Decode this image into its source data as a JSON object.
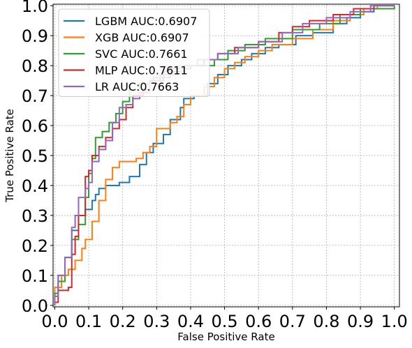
{
  "chart_data": {
    "type": "line",
    "title": "",
    "xlabel": "False Positive Rate",
    "ylabel": "True Positive Rate",
    "xlim": [
      -0.005,
      1.015
    ],
    "ylim": [
      -0.005,
      1.005
    ],
    "xticks": [
      0.0,
      0.1,
      0.2,
      0.3,
      0.4,
      0.5,
      0.6,
      0.7,
      0.8,
      0.9,
      1.0
    ],
    "yticks": [
      0.0,
      0.1,
      0.2,
      0.3,
      0.4,
      0.5,
      0.6,
      0.7,
      0.8,
      0.9,
      1.0
    ],
    "tick_labels_x": [
      "0.0",
      "0.1",
      "0.2",
      "0.3",
      "0.4",
      "0.5",
      "0.6",
      "0.7",
      "0.8",
      "0.9",
      "1.0"
    ],
    "tick_labels_y": [
      "0.0",
      "0.1",
      "0.2",
      "0.3",
      "0.4",
      "0.5",
      "0.6",
      "0.7",
      "0.8",
      "0.9",
      "1.0"
    ],
    "grid": true,
    "legend_position": "top-left",
    "series": [
      {
        "name": "LGBM AUC:0.6907",
        "color": "#1f77b4",
        "points": [
          [
            0,
            0
          ],
          [
            0,
            0.03
          ],
          [
            0.01,
            0.03
          ],
          [
            0.01,
            0.1
          ],
          [
            0.03,
            0.1
          ],
          [
            0.03,
            0.16
          ],
          [
            0.05,
            0.16
          ],
          [
            0.05,
            0.25
          ],
          [
            0.07,
            0.25
          ],
          [
            0.07,
            0.3
          ],
          [
            0.09,
            0.3
          ],
          [
            0.09,
            0.32
          ],
          [
            0.11,
            0.32
          ],
          [
            0.11,
            0.35
          ],
          [
            0.12,
            0.35
          ],
          [
            0.12,
            0.37
          ],
          [
            0.13,
            0.37
          ],
          [
            0.13,
            0.39
          ],
          [
            0.15,
            0.39
          ],
          [
            0.15,
            0.4
          ],
          [
            0.19,
            0.4
          ],
          [
            0.19,
            0.41
          ],
          [
            0.22,
            0.41
          ],
          [
            0.22,
            0.43
          ],
          [
            0.25,
            0.43
          ],
          [
            0.25,
            0.47
          ],
          [
            0.27,
            0.47
          ],
          [
            0.27,
            0.51
          ],
          [
            0.29,
            0.51
          ],
          [
            0.29,
            0.54
          ],
          [
            0.32,
            0.54
          ],
          [
            0.32,
            0.57
          ],
          [
            0.34,
            0.57
          ],
          [
            0.34,
            0.62
          ],
          [
            0.37,
            0.62
          ],
          [
            0.37,
            0.66
          ],
          [
            0.38,
            0.66
          ],
          [
            0.38,
            0.69
          ],
          [
            0.41,
            0.69
          ],
          [
            0.41,
            0.7
          ],
          [
            0.45,
            0.7
          ],
          [
            0.45,
            0.74
          ],
          [
            0.48,
            0.74
          ],
          [
            0.48,
            0.77
          ],
          [
            0.51,
            0.77
          ],
          [
            0.51,
            0.8
          ],
          [
            0.55,
            0.8
          ],
          [
            0.55,
            0.82
          ],
          [
            0.58,
            0.82
          ],
          [
            0.58,
            0.84
          ],
          [
            0.62,
            0.84
          ],
          [
            0.62,
            0.86
          ],
          [
            0.66,
            0.86
          ],
          [
            0.66,
            0.87
          ],
          [
            0.71,
            0.87
          ],
          [
            0.71,
            0.9
          ],
          [
            0.76,
            0.9
          ],
          [
            0.76,
            0.91
          ],
          [
            0.82,
            0.91
          ],
          [
            0.82,
            0.94
          ],
          [
            0.86,
            0.94
          ],
          [
            0.86,
            0.96
          ],
          [
            0.9,
            0.96
          ],
          [
            0.9,
            0.98
          ],
          [
            0.94,
            0.98
          ],
          [
            0.94,
            1.0
          ],
          [
            1.0,
            1.0
          ]
        ]
      },
      {
        "name": "XGB AUC:0.6907",
        "color": "#ff7f0e",
        "points": [
          [
            0,
            0
          ],
          [
            0,
            0.06
          ],
          [
            0.02,
            0.06
          ],
          [
            0.02,
            0.1
          ],
          [
            0.04,
            0.1
          ],
          [
            0.04,
            0.12
          ],
          [
            0.06,
            0.12
          ],
          [
            0.06,
            0.15
          ],
          [
            0.08,
            0.15
          ],
          [
            0.08,
            0.19
          ],
          [
            0.09,
            0.19
          ],
          [
            0.09,
            0.22
          ],
          [
            0.11,
            0.22
          ],
          [
            0.11,
            0.28
          ],
          [
            0.13,
            0.28
          ],
          [
            0.13,
            0.35
          ],
          [
            0.15,
            0.35
          ],
          [
            0.15,
            0.42
          ],
          [
            0.17,
            0.42
          ],
          [
            0.17,
            0.46
          ],
          [
            0.19,
            0.46
          ],
          [
            0.19,
            0.48
          ],
          [
            0.24,
            0.48
          ],
          [
            0.24,
            0.49
          ],
          [
            0.26,
            0.49
          ],
          [
            0.26,
            0.51
          ],
          [
            0.28,
            0.51
          ],
          [
            0.28,
            0.53
          ],
          [
            0.3,
            0.53
          ],
          [
            0.3,
            0.59
          ],
          [
            0.34,
            0.59
          ],
          [
            0.34,
            0.61
          ],
          [
            0.36,
            0.61
          ],
          [
            0.36,
            0.63
          ],
          [
            0.38,
            0.63
          ],
          [
            0.38,
            0.67
          ],
          [
            0.4,
            0.67
          ],
          [
            0.4,
            0.7
          ],
          [
            0.44,
            0.7
          ],
          [
            0.44,
            0.73
          ],
          [
            0.47,
            0.73
          ],
          [
            0.47,
            0.76
          ],
          [
            0.5,
            0.76
          ],
          [
            0.5,
            0.79
          ],
          [
            0.53,
            0.79
          ],
          [
            0.53,
            0.81
          ],
          [
            0.56,
            0.81
          ],
          [
            0.56,
            0.83
          ],
          [
            0.6,
            0.83
          ],
          [
            0.6,
            0.85
          ],
          [
            0.64,
            0.85
          ],
          [
            0.64,
            0.87
          ],
          [
            0.7,
            0.87
          ],
          [
            0.7,
            0.89
          ],
          [
            0.76,
            0.89
          ],
          [
            0.76,
            0.92
          ],
          [
            0.82,
            0.92
          ],
          [
            0.82,
            0.95
          ],
          [
            0.87,
            0.95
          ],
          [
            0.87,
            0.97
          ],
          [
            0.91,
            0.97
          ],
          [
            0.91,
            0.99
          ],
          [
            0.95,
            0.99
          ],
          [
            0.95,
            1.0
          ],
          [
            1.0,
            1.0
          ]
        ]
      },
      {
        "name": "SVC AUC:0.7661",
        "color": "#2ca02c",
        "points": [
          [
            0,
            0
          ],
          [
            0,
            0.04
          ],
          [
            0.01,
            0.04
          ],
          [
            0.01,
            0.08
          ],
          [
            0.03,
            0.08
          ],
          [
            0.03,
            0.16
          ],
          [
            0.05,
            0.16
          ],
          [
            0.05,
            0.22
          ],
          [
            0.07,
            0.22
          ],
          [
            0.07,
            0.27
          ],
          [
            0.09,
            0.27
          ],
          [
            0.09,
            0.36
          ],
          [
            0.1,
            0.36
          ],
          [
            0.1,
            0.44
          ],
          [
            0.11,
            0.44
          ],
          [
            0.11,
            0.49
          ],
          [
            0.12,
            0.49
          ],
          [
            0.12,
            0.56
          ],
          [
            0.14,
            0.56
          ],
          [
            0.14,
            0.58
          ],
          [
            0.16,
            0.58
          ],
          [
            0.16,
            0.61
          ],
          [
            0.18,
            0.61
          ],
          [
            0.18,
            0.64
          ],
          [
            0.2,
            0.64
          ],
          [
            0.2,
            0.68
          ],
          [
            0.22,
            0.68
          ],
          [
            0.22,
            0.72
          ],
          [
            0.25,
            0.72
          ],
          [
            0.25,
            0.74
          ],
          [
            0.29,
            0.74
          ],
          [
            0.29,
            0.76
          ],
          [
            0.34,
            0.76
          ],
          [
            0.34,
            0.79
          ],
          [
            0.4,
            0.79
          ],
          [
            0.4,
            0.8
          ],
          [
            0.47,
            0.8
          ],
          [
            0.47,
            0.82
          ],
          [
            0.51,
            0.82
          ],
          [
            0.51,
            0.85
          ],
          [
            0.56,
            0.85
          ],
          [
            0.56,
            0.87
          ],
          [
            0.62,
            0.87
          ],
          [
            0.62,
            0.89
          ],
          [
            0.7,
            0.89
          ],
          [
            0.7,
            0.92
          ],
          [
            0.78,
            0.92
          ],
          [
            0.78,
            0.94
          ],
          [
            0.84,
            0.94
          ],
          [
            0.84,
            0.97
          ],
          [
            0.9,
            0.97
          ],
          [
            0.9,
            0.99
          ],
          [
            1.0,
            0.99
          ],
          [
            1.0,
            1.0
          ]
        ]
      },
      {
        "name": "MLP AUC:0.7611",
        "color": "#d62728",
        "points": [
          [
            0,
            0
          ],
          [
            0,
            0.01
          ],
          [
            0.01,
            0.01
          ],
          [
            0.01,
            0.05
          ],
          [
            0.04,
            0.05
          ],
          [
            0.04,
            0.06
          ],
          [
            0.05,
            0.06
          ],
          [
            0.05,
            0.17
          ],
          [
            0.06,
            0.17
          ],
          [
            0.06,
            0.23
          ],
          [
            0.07,
            0.23
          ],
          [
            0.07,
            0.3
          ],
          [
            0.09,
            0.3
          ],
          [
            0.09,
            0.43
          ],
          [
            0.1,
            0.43
          ],
          [
            0.1,
            0.45
          ],
          [
            0.11,
            0.45
          ],
          [
            0.11,
            0.5
          ],
          [
            0.13,
            0.5
          ],
          [
            0.13,
            0.53
          ],
          [
            0.15,
            0.53
          ],
          [
            0.15,
            0.56
          ],
          [
            0.17,
            0.56
          ],
          [
            0.17,
            0.59
          ],
          [
            0.19,
            0.59
          ],
          [
            0.19,
            0.62
          ],
          [
            0.21,
            0.62
          ],
          [
            0.21,
            0.66
          ],
          [
            0.23,
            0.66
          ],
          [
            0.23,
            0.7
          ],
          [
            0.26,
            0.7
          ],
          [
            0.26,
            0.72
          ],
          [
            0.28,
            0.72
          ],
          [
            0.28,
            0.75
          ],
          [
            0.32,
            0.75
          ],
          [
            0.32,
            0.78
          ],
          [
            0.38,
            0.78
          ],
          [
            0.38,
            0.8
          ],
          [
            0.44,
            0.8
          ],
          [
            0.44,
            0.82
          ],
          [
            0.48,
            0.82
          ],
          [
            0.48,
            0.84
          ],
          [
            0.53,
            0.84
          ],
          [
            0.53,
            0.86
          ],
          [
            0.6,
            0.86
          ],
          [
            0.6,
            0.88
          ],
          [
            0.66,
            0.88
          ],
          [
            0.66,
            0.91
          ],
          [
            0.7,
            0.91
          ],
          [
            0.7,
            0.93
          ],
          [
            0.75,
            0.93
          ],
          [
            0.75,
            0.95
          ],
          [
            0.82,
            0.95
          ],
          [
            0.82,
            0.97
          ],
          [
            0.88,
            0.97
          ],
          [
            0.88,
            0.99
          ],
          [
            0.94,
            0.99
          ],
          [
            0.94,
            1.0
          ],
          [
            1.0,
            1.0
          ]
        ]
      },
      {
        "name": "LR AUC:0.7663",
        "color": "#9467bd",
        "points": [
          [
            0,
            0
          ],
          [
            0,
            0.03
          ],
          [
            0.01,
            0.03
          ],
          [
            0.01,
            0.1
          ],
          [
            0.03,
            0.1
          ],
          [
            0.03,
            0.16
          ],
          [
            0.05,
            0.16
          ],
          [
            0.05,
            0.26
          ],
          [
            0.06,
            0.26
          ],
          [
            0.06,
            0.3
          ],
          [
            0.07,
            0.3
          ],
          [
            0.07,
            0.36
          ],
          [
            0.09,
            0.36
          ],
          [
            0.09,
            0.39
          ],
          [
            0.1,
            0.39
          ],
          [
            0.1,
            0.41
          ],
          [
            0.11,
            0.41
          ],
          [
            0.11,
            0.48
          ],
          [
            0.13,
            0.48
          ],
          [
            0.13,
            0.52
          ],
          [
            0.15,
            0.52
          ],
          [
            0.15,
            0.55
          ],
          [
            0.17,
            0.55
          ],
          [
            0.17,
            0.61
          ],
          [
            0.19,
            0.61
          ],
          [
            0.19,
            0.66
          ],
          [
            0.21,
            0.66
          ],
          [
            0.21,
            0.67
          ],
          [
            0.23,
            0.67
          ],
          [
            0.23,
            0.69
          ],
          [
            0.25,
            0.69
          ],
          [
            0.25,
            0.71
          ],
          [
            0.28,
            0.71
          ],
          [
            0.28,
            0.74
          ],
          [
            0.31,
            0.74
          ],
          [
            0.31,
            0.77
          ],
          [
            0.36,
            0.77
          ],
          [
            0.36,
            0.8
          ],
          [
            0.42,
            0.8
          ],
          [
            0.42,
            0.82
          ],
          [
            0.48,
            0.82
          ],
          [
            0.48,
            0.84
          ],
          [
            0.54,
            0.84
          ],
          [
            0.54,
            0.86
          ],
          [
            0.6,
            0.86
          ],
          [
            0.6,
            0.88
          ],
          [
            0.67,
            0.88
          ],
          [
            0.67,
            0.91
          ],
          [
            0.73,
            0.91
          ],
          [
            0.73,
            0.94
          ],
          [
            0.8,
            0.94
          ],
          [
            0.8,
            0.96
          ],
          [
            0.87,
            0.96
          ],
          [
            0.87,
            0.98
          ],
          [
            0.93,
            0.98
          ],
          [
            0.93,
            1.0
          ],
          [
            1.0,
            1.0
          ]
        ]
      }
    ]
  }
}
